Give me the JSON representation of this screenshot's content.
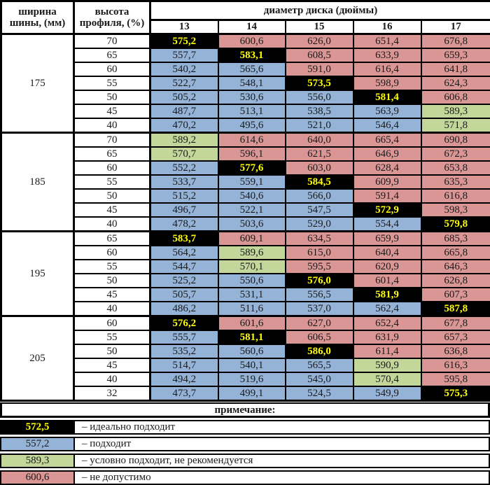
{
  "colors": {
    "ideal_bg": "#000000",
    "ideal_text": "#ffff00",
    "suitable_bg": "#95b3d7",
    "conditional_bg": "#c4d79b",
    "not_allowed_bg": "#d99694",
    "border": "#000000",
    "background": "#ffffff"
  },
  "chart_data": {
    "type": "table",
    "row_header_1": {
      "line1": "ширина",
      "line2": "шины, (мм)"
    },
    "row_header_2": {
      "line1": "высота",
      "line2": "профиля, (%)"
    },
    "column_group_title": "диаметр диска (дюймы)",
    "columns": [
      "13",
      "14",
      "15",
      "16",
      "17"
    ],
    "status_codes": {
      "ideal": "идеально подходит",
      "ok": "подходит",
      "cond": "условно подходит, не рекомендуется",
      "no": "не допустимо"
    },
    "blocks": [
      {
        "width": "175",
        "rows": [
          {
            "profile": "70",
            "cells": [
              {
                "v": "575,2",
                "s": "ideal"
              },
              {
                "v": "600,6",
                "s": "no"
              },
              {
                "v": "626,0",
                "s": "no"
              },
              {
                "v": "651,4",
                "s": "no"
              },
              {
                "v": "676,8",
                "s": "no"
              }
            ]
          },
          {
            "profile": "65",
            "cells": [
              {
                "v": "557,7",
                "s": "ok"
              },
              {
                "v": "583,1",
                "s": "ideal"
              },
              {
                "v": "608,5",
                "s": "no"
              },
              {
                "v": "633,9",
                "s": "no"
              },
              {
                "v": "659,3",
                "s": "no"
              }
            ]
          },
          {
            "profile": "60",
            "cells": [
              {
                "v": "540,2",
                "s": "ok"
              },
              {
                "v": "565,6",
                "s": "ok"
              },
              {
                "v": "591,0",
                "s": "no"
              },
              {
                "v": "616,4",
                "s": "no"
              },
              {
                "v": "641,8",
                "s": "no"
              }
            ]
          },
          {
            "profile": "55",
            "cells": [
              {
                "v": "522,7",
                "s": "ok"
              },
              {
                "v": "548,1",
                "s": "ok"
              },
              {
                "v": "573,5",
                "s": "ideal"
              },
              {
                "v": "598,9",
                "s": "no"
              },
              {
                "v": "624,3",
                "s": "no"
              }
            ]
          },
          {
            "profile": "50",
            "cells": [
              {
                "v": "505,2",
                "s": "ok"
              },
              {
                "v": "530,6",
                "s": "ok"
              },
              {
                "v": "556,0",
                "s": "ok"
              },
              {
                "v": "581,4",
                "s": "ideal"
              },
              {
                "v": "606,8",
                "s": "no"
              }
            ]
          },
          {
            "profile": "45",
            "cells": [
              {
                "v": "487,7",
                "s": "ok"
              },
              {
                "v": "513,1",
                "s": "ok"
              },
              {
                "v": "538,5",
                "s": "ok"
              },
              {
                "v": "563,9",
                "s": "ok"
              },
              {
                "v": "589,3",
                "s": "cond"
              }
            ]
          },
          {
            "profile": "40",
            "cells": [
              {
                "v": "470,2",
                "s": "ok"
              },
              {
                "v": "495,6",
                "s": "ok"
              },
              {
                "v": "521,0",
                "s": "ok"
              },
              {
                "v": "546,4",
                "s": "ok"
              },
              {
                "v": "571,8",
                "s": "cond"
              }
            ]
          }
        ]
      },
      {
        "width": "185",
        "rows": [
          {
            "profile": "70",
            "cells": [
              {
                "v": "589,2",
                "s": "cond"
              },
              {
                "v": "614,6",
                "s": "no"
              },
              {
                "v": "640,0",
                "s": "no"
              },
              {
                "v": "665,4",
                "s": "no"
              },
              {
                "v": "690,8",
                "s": "no"
              }
            ]
          },
          {
            "profile": "65",
            "cells": [
              {
                "v": "570,7",
                "s": "cond"
              },
              {
                "v": "596,1",
                "s": "no"
              },
              {
                "v": "621,5",
                "s": "no"
              },
              {
                "v": "646,9",
                "s": "no"
              },
              {
                "v": "672,3",
                "s": "no"
              }
            ]
          },
          {
            "profile": "60",
            "cells": [
              {
                "v": "552,2",
                "s": "ok"
              },
              {
                "v": "577,6",
                "s": "ideal"
              },
              {
                "v": "603,0",
                "s": "no"
              },
              {
                "v": "628,4",
                "s": "no"
              },
              {
                "v": "653,8",
                "s": "no"
              }
            ]
          },
          {
            "profile": "55",
            "cells": [
              {
                "v": "533,7",
                "s": "ok"
              },
              {
                "v": "559,1",
                "s": "ok"
              },
              {
                "v": "584,5",
                "s": "ideal"
              },
              {
                "v": "609,9",
                "s": "no"
              },
              {
                "v": "635,3",
                "s": "no"
              }
            ]
          },
          {
            "profile": "50",
            "cells": [
              {
                "v": "515,2",
                "s": "ok"
              },
              {
                "v": "540,6",
                "s": "ok"
              },
              {
                "v": "566,0",
                "s": "ok"
              },
              {
                "v": "591,4",
                "s": "no"
              },
              {
                "v": "616,8",
                "s": "no"
              }
            ]
          },
          {
            "profile": "45",
            "cells": [
              {
                "v": "496,7",
                "s": "ok"
              },
              {
                "v": "522,1",
                "s": "ok"
              },
              {
                "v": "547,5",
                "s": "ok"
              },
              {
                "v": "572,9",
                "s": "ideal"
              },
              {
                "v": "598,3",
                "s": "no"
              }
            ]
          },
          {
            "profile": "40",
            "cells": [
              {
                "v": "478,2",
                "s": "ok"
              },
              {
                "v": "503,6",
                "s": "ok"
              },
              {
                "v": "529,0",
                "s": "ok"
              },
              {
                "v": "554,4",
                "s": "ok"
              },
              {
                "v": "579,8",
                "s": "ideal"
              }
            ]
          }
        ]
      },
      {
        "width": "195",
        "rows": [
          {
            "profile": "65",
            "cells": [
              {
                "v": "583,7",
                "s": "ideal"
              },
              {
                "v": "609,1",
                "s": "no"
              },
              {
                "v": "634,5",
                "s": "no"
              },
              {
                "v": "659,9",
                "s": "no"
              },
              {
                "v": "685,3",
                "s": "no"
              }
            ]
          },
          {
            "profile": "60",
            "cells": [
              {
                "v": "564,2",
                "s": "ok"
              },
              {
                "v": "589,6",
                "s": "cond"
              },
              {
                "v": "615,0",
                "s": "no"
              },
              {
                "v": "640,4",
                "s": "no"
              },
              {
                "v": "665,8",
                "s": "no"
              }
            ]
          },
          {
            "profile": "55",
            "cells": [
              {
                "v": "544,7",
                "s": "ok"
              },
              {
                "v": "570,1",
                "s": "cond"
              },
              {
                "v": "595,5",
                "s": "no"
              },
              {
                "v": "620,9",
                "s": "no"
              },
              {
                "v": "646,3",
                "s": "no"
              }
            ]
          },
          {
            "profile": "50",
            "cells": [
              {
                "v": "525,2",
                "s": "ok"
              },
              {
                "v": "550,6",
                "s": "ok"
              },
              {
                "v": "576,0",
                "s": "ideal"
              },
              {
                "v": "601,4",
                "s": "no"
              },
              {
                "v": "626,8",
                "s": "no"
              }
            ]
          },
          {
            "profile": "45",
            "cells": [
              {
                "v": "505,7",
                "s": "ok"
              },
              {
                "v": "531,1",
                "s": "ok"
              },
              {
                "v": "556,5",
                "s": "ok"
              },
              {
                "v": "581,9",
                "s": "ideal"
              },
              {
                "v": "607,3",
                "s": "no"
              }
            ]
          },
          {
            "profile": "40",
            "cells": [
              {
                "v": "486,2",
                "s": "ok"
              },
              {
                "v": "511,6",
                "s": "ok"
              },
              {
                "v": "537,0",
                "s": "ok"
              },
              {
                "v": "562,4",
                "s": "ok"
              },
              {
                "v": "587,8",
                "s": "ideal"
              }
            ]
          }
        ]
      },
      {
        "width": "205",
        "rows": [
          {
            "profile": "60",
            "cells": [
              {
                "v": "576,2",
                "s": "ideal"
              },
              {
                "v": "601,6",
                "s": "no"
              },
              {
                "v": "627,0",
                "s": "no"
              },
              {
                "v": "652,4",
                "s": "no"
              },
              {
                "v": "677,8",
                "s": "no"
              }
            ]
          },
          {
            "profile": "55",
            "cells": [
              {
                "v": "555,7",
                "s": "ok"
              },
              {
                "v": "581,1",
                "s": "ideal"
              },
              {
                "v": "606,5",
                "s": "no"
              },
              {
                "v": "631,9",
                "s": "no"
              },
              {
                "v": "657,3",
                "s": "no"
              }
            ]
          },
          {
            "profile": "50",
            "cells": [
              {
                "v": "535,2",
                "s": "ok"
              },
              {
                "v": "560,6",
                "s": "ok"
              },
              {
                "v": "586,0",
                "s": "ideal"
              },
              {
                "v": "611,4",
                "s": "no"
              },
              {
                "v": "636,8",
                "s": "no"
              }
            ]
          },
          {
            "profile": "45",
            "cells": [
              {
                "v": "514,7",
                "s": "ok"
              },
              {
                "v": "540,1",
                "s": "ok"
              },
              {
                "v": "565,5",
                "s": "ok"
              },
              {
                "v": "590,9",
                "s": "cond"
              },
              {
                "v": "616,3",
                "s": "no"
              }
            ]
          },
          {
            "profile": "40",
            "cells": [
              {
                "v": "494,2",
                "s": "ok"
              },
              {
                "v": "519,6",
                "s": "ok"
              },
              {
                "v": "545,0",
                "s": "ok"
              },
              {
                "v": "570,4",
                "s": "cond"
              },
              {
                "v": "595,8",
                "s": "no"
              }
            ]
          },
          {
            "profile": "32",
            "cells": [
              {
                "v": "473,7",
                "s": "ok"
              },
              {
                "v": "499,1",
                "s": "ok"
              },
              {
                "v": "524,5",
                "s": "ok"
              },
              {
                "v": "549,9",
                "s": "ok"
              },
              {
                "v": "575,3",
                "s": "ideal"
              }
            ]
          }
        ]
      }
    ],
    "note": {
      "title": "примечание:",
      "legend": [
        {
          "value": "572,5",
          "style": "ideal",
          "label": "– идеально подходит"
        },
        {
          "value": "557,2",
          "style": "ok",
          "label": "– подходит"
        },
        {
          "value": "589,3",
          "style": "cond",
          "label": "– условно подходит, не рекомендуется"
        },
        {
          "value": "600,6",
          "style": "no",
          "label": "– не допустимо"
        }
      ]
    }
  }
}
